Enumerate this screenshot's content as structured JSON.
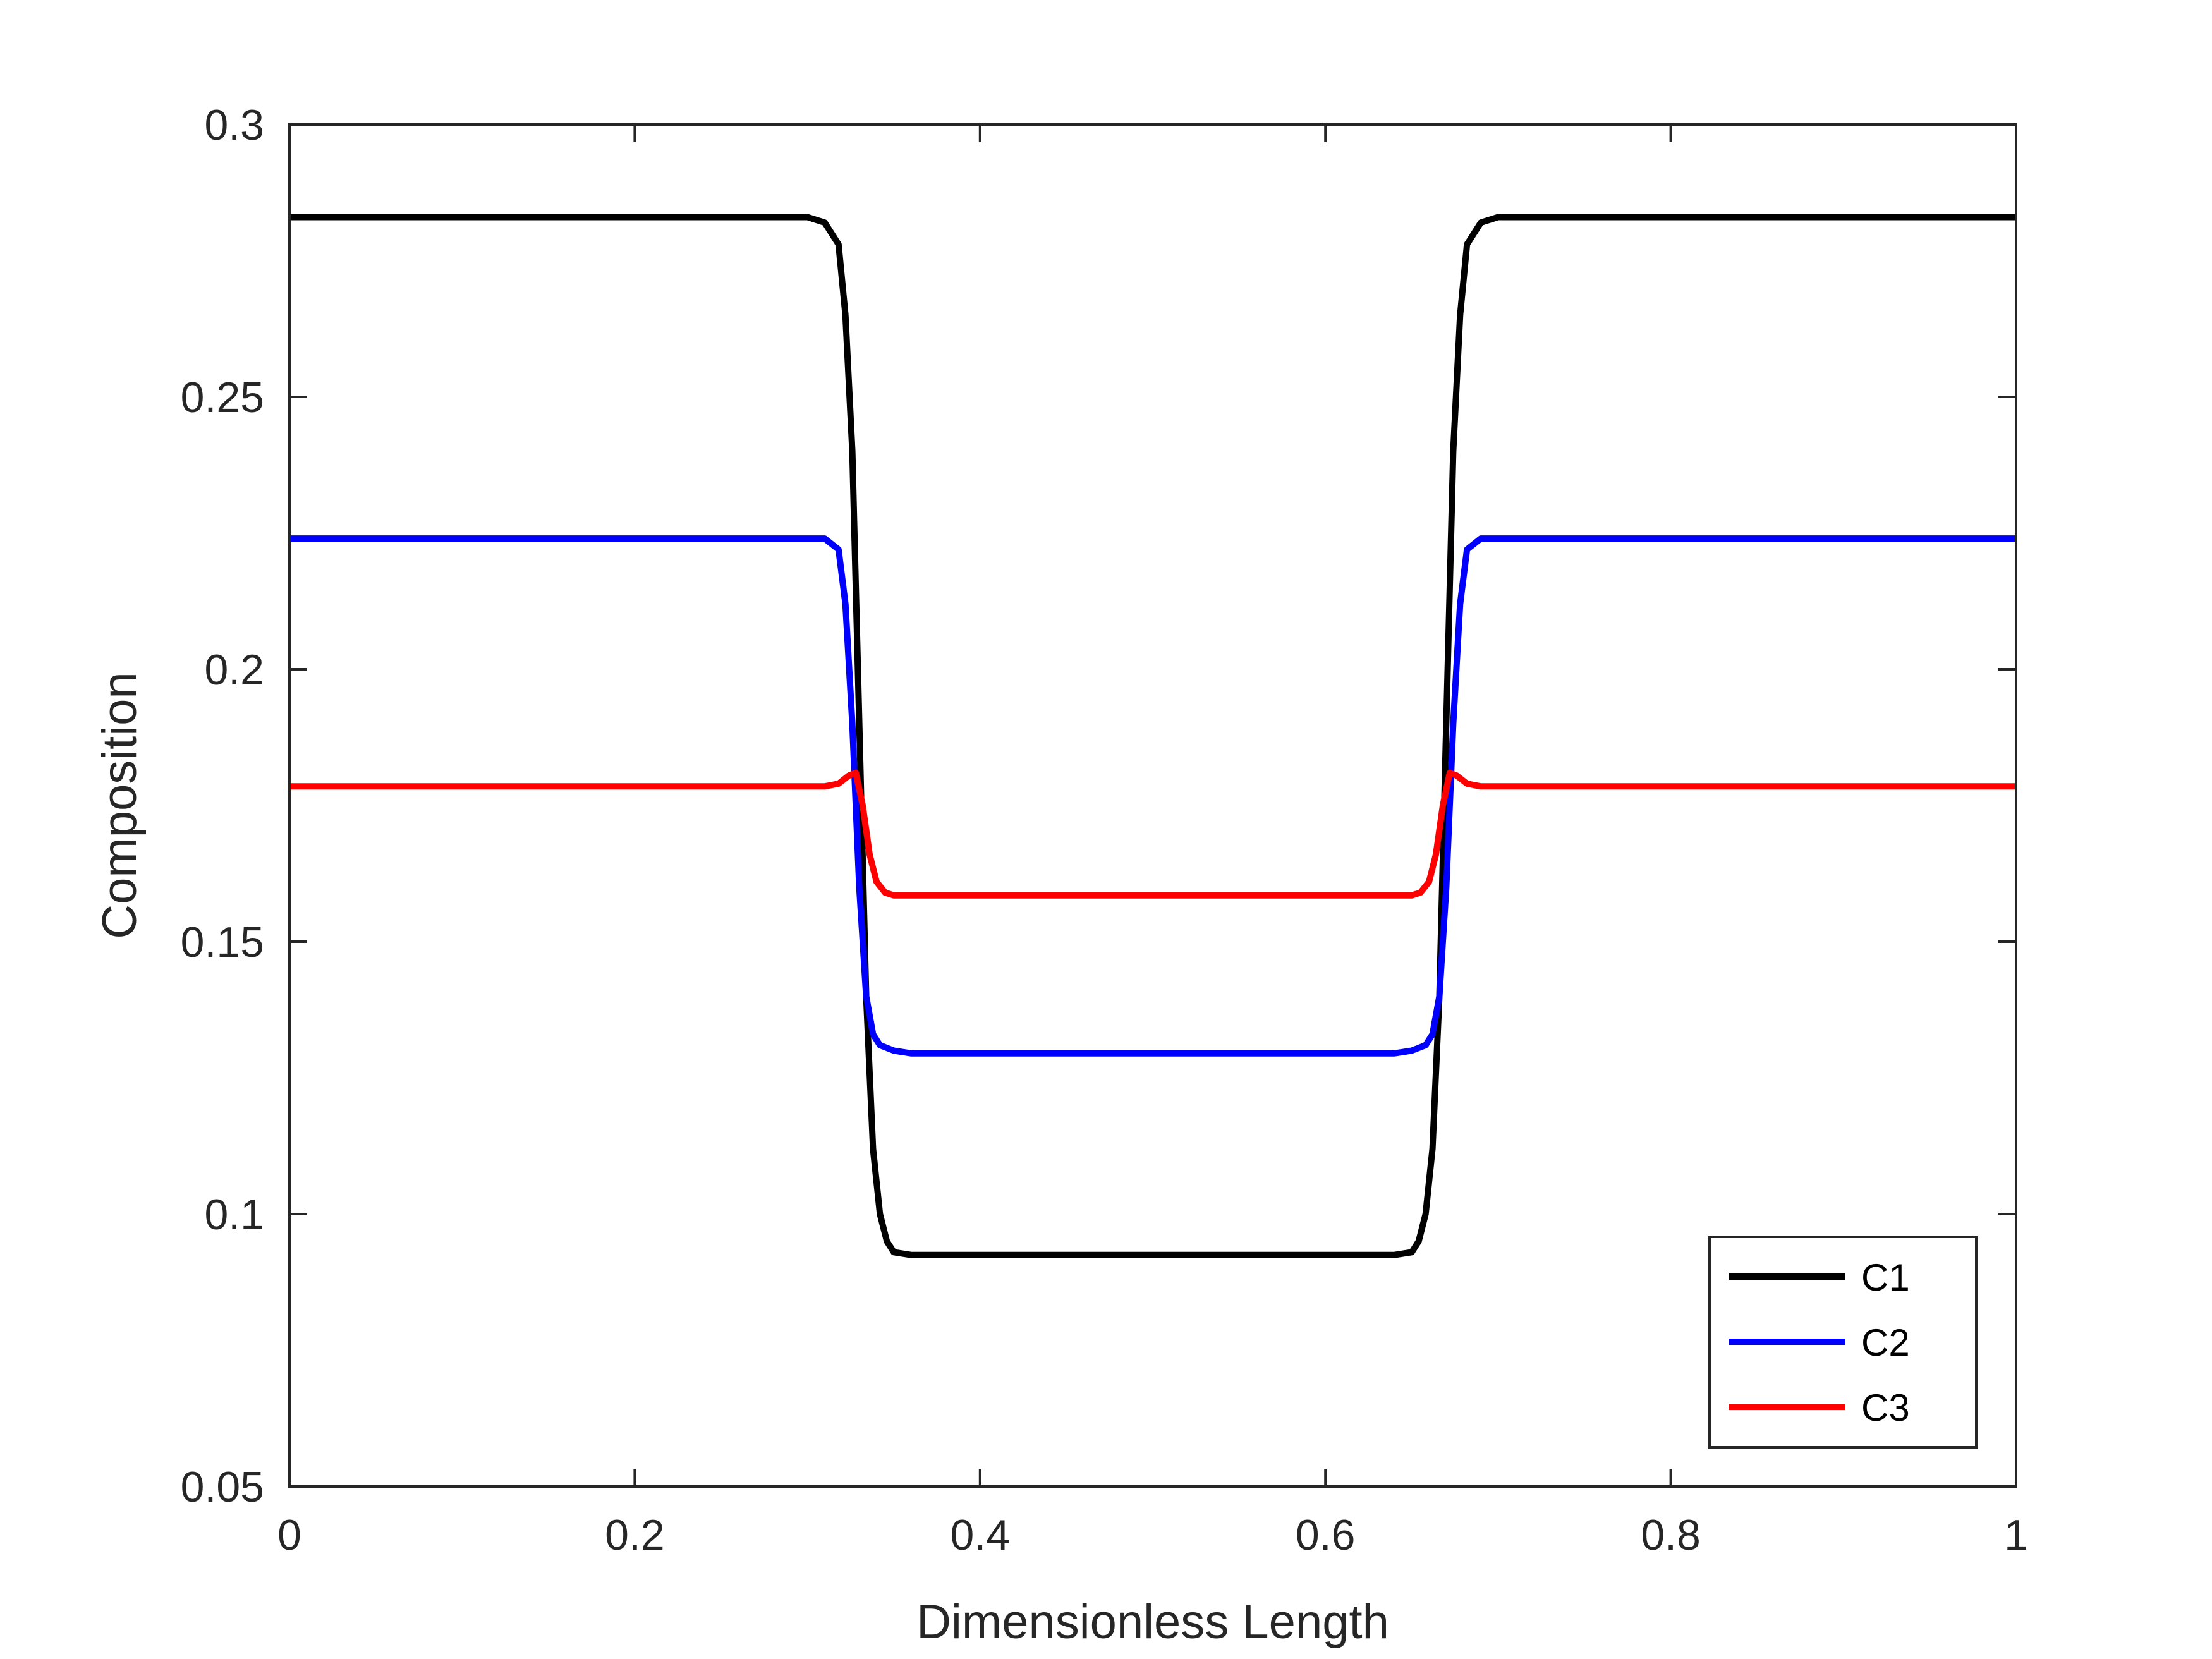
{
  "chart_data": {
    "type": "line",
    "xlabel": "Dimensionless Length",
    "ylabel": "Composition",
    "xlim": [
      0,
      1
    ],
    "ylim": [
      0.05,
      0.3
    ],
    "x_ticks": [
      "0",
      "0.2",
      "0.4",
      "0.6",
      "0.8",
      "1"
    ],
    "y_ticks": [
      "0.05",
      "0.1",
      "0.15",
      "0.2",
      "0.25",
      "0.3"
    ],
    "grid": false,
    "legend_position": "bottom-right",
    "series": [
      {
        "name": "C1",
        "color": "#000000",
        "x": [
          0,
          0.3,
          0.31,
          0.318,
          0.322,
          0.326,
          0.33,
          0.334,
          0.338,
          0.342,
          0.346,
          0.35,
          0.36,
          0.37,
          0.5,
          0.63,
          0.64,
          0.65,
          0.654,
          0.658,
          0.662,
          0.666,
          0.67,
          0.674,
          0.678,
          0.682,
          0.69,
          0.7,
          1
        ],
        "y": [
          0.283,
          0.283,
          0.282,
          0.278,
          0.265,
          0.24,
          0.19,
          0.14,
          0.112,
          0.1,
          0.095,
          0.093,
          0.0925,
          0.0925,
          0.0925,
          0.0925,
          0.0925,
          0.093,
          0.095,
          0.1,
          0.112,
          0.14,
          0.19,
          0.24,
          0.265,
          0.278,
          0.282,
          0.283,
          0.283
        ]
      },
      {
        "name": "C2",
        "color": "#0000ff",
        "x": [
          0,
          0.31,
          0.318,
          0.322,
          0.326,
          0.33,
          0.334,
          0.338,
          0.342,
          0.346,
          0.35,
          0.36,
          0.5,
          0.64,
          0.65,
          0.654,
          0.658,
          0.662,
          0.666,
          0.67,
          0.674,
          0.678,
          0.682,
          0.69,
          1
        ],
        "y": [
          0.224,
          0.224,
          0.222,
          0.212,
          0.19,
          0.16,
          0.14,
          0.133,
          0.131,
          0.1305,
          0.13,
          0.1295,
          0.1295,
          0.1295,
          0.13,
          0.1305,
          0.131,
          0.133,
          0.14,
          0.16,
          0.19,
          0.212,
          0.222,
          0.224,
          0.224
        ]
      },
      {
        "name": "C3",
        "color": "#ff0000",
        "x": [
          0,
          0.31,
          0.318,
          0.324,
          0.328,
          0.332,
          0.336,
          0.34,
          0.345,
          0.35,
          0.36,
          0.5,
          0.64,
          0.65,
          0.655,
          0.66,
          0.664,
          0.668,
          0.672,
          0.676,
          0.682,
          0.69,
          1
        ],
        "y": [
          0.1785,
          0.1785,
          0.179,
          0.1805,
          0.181,
          0.175,
          0.166,
          0.161,
          0.159,
          0.1585,
          0.1585,
          0.1585,
          0.1585,
          0.1585,
          0.159,
          0.161,
          0.166,
          0.175,
          0.181,
          0.1805,
          0.179,
          0.1785,
          0.1785
        ]
      }
    ]
  }
}
